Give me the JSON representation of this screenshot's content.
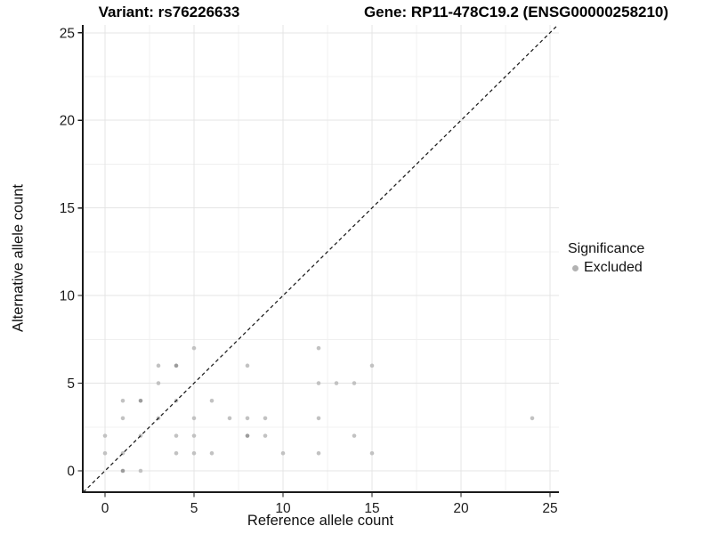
{
  "titles": {
    "left": "Variant: rs76226633",
    "right": "Gene: RP11-478C19.2 (ENSG00000258210)"
  },
  "chart_data": {
    "type": "scatter",
    "xlabel": "Reference allele count",
    "ylabel": "Alternative allele count",
    "xlim": [
      0,
      25
    ],
    "ylim": [
      0,
      25
    ],
    "xticks": [
      0,
      5,
      10,
      15,
      20,
      25
    ],
    "yticks": [
      0,
      5,
      10,
      15,
      20,
      25
    ],
    "minor_ticks": [
      2.5,
      7.5,
      12.5,
      17.5,
      22.5
    ],
    "grid": "major and minor, light gray, on white panel",
    "identity_line": {
      "type": "y=x",
      "style": "dashed",
      "color": "#1a1a1a"
    },
    "legend": {
      "position": "right",
      "title": "Significance",
      "items": [
        {
          "label": "Excluded",
          "color": "#b2b2b2"
        }
      ]
    },
    "point_color": "#c2c2c2",
    "point_color_overlap": "#9c9c9c",
    "series": [
      {
        "name": "Excluded",
        "note": "points are [reference_count, alternative_count, n_overlapping]",
        "points": [
          [
            0,
            1,
            1
          ],
          [
            0,
            2,
            1
          ],
          [
            1,
            0,
            2
          ],
          [
            1,
            1,
            1
          ],
          [
            1,
            3,
            1
          ],
          [
            1,
            4,
            1
          ],
          [
            2,
            0,
            1
          ],
          [
            2,
            2,
            1
          ],
          [
            2,
            4,
            2
          ],
          [
            3,
            3,
            1
          ],
          [
            3,
            5,
            1
          ],
          [
            3,
            6,
            1
          ],
          [
            4,
            1,
            1
          ],
          [
            4,
            2,
            1
          ],
          [
            4,
            4,
            1
          ],
          [
            4,
            6,
            2
          ],
          [
            5,
            1,
            1
          ],
          [
            5,
            2,
            1
          ],
          [
            5,
            3,
            1
          ],
          [
            5,
            7,
            1
          ],
          [
            6,
            1,
            1
          ],
          [
            6,
            4,
            1
          ],
          [
            7,
            3,
            1
          ],
          [
            8,
            2,
            2
          ],
          [
            8,
            3,
            1
          ],
          [
            8,
            6,
            1
          ],
          [
            9,
            2,
            1
          ],
          [
            9,
            3,
            1
          ],
          [
            10,
            1,
            1
          ],
          [
            12,
            1,
            1
          ],
          [
            12,
            3,
            1
          ],
          [
            12,
            5,
            1
          ],
          [
            12,
            7,
            1
          ],
          [
            13,
            5,
            1
          ],
          [
            14,
            2,
            1
          ],
          [
            14,
            5,
            1
          ],
          [
            15,
            1,
            1
          ],
          [
            15,
            6,
            1
          ],
          [
            24,
            3,
            1
          ]
        ]
      }
    ],
    "colors": {
      "grid_major": "#e4e4e4",
      "grid_minor": "#f0f0f0",
      "axis_line": "#1a1a1a",
      "tick_label": "#1c1c1c"
    }
  }
}
